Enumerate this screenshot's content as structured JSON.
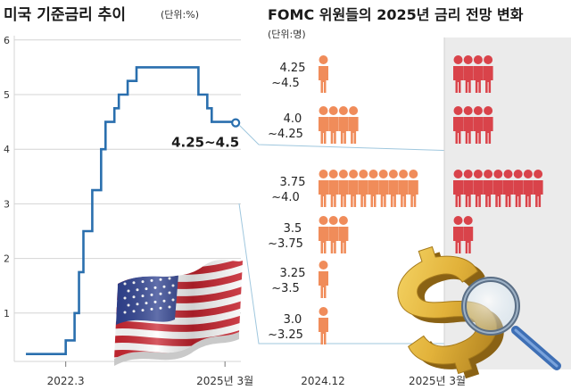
{
  "chart_data": [
    {
      "type": "line",
      "title": "미국 기준금리 추이",
      "unit": "(단위:%)",
      "x_tick_labels": [
        "2022.3",
        "2025년 3월"
      ],
      "y_tick_labels": [
        "1",
        "2",
        "3",
        "4",
        "5",
        "6"
      ],
      "ylim": [
        0,
        6
      ],
      "grid": true,
      "annotation": "4.25~4.5",
      "series": [
        {
          "x": [
            "2021.06",
            "2022.02",
            "2022.03",
            "2022.05",
            "2022.06",
            "2022.07",
            "2022.09",
            "2022.11",
            "2022.12",
            "2023.02",
            "2023.03",
            "2023.05",
            "2023.07",
            "2024.09",
            "2024.11",
            "2024.12",
            "2025.03"
          ],
          "values": [
            0.25,
            0.25,
            0.5,
            1.0,
            1.75,
            2.5,
            3.25,
            4.0,
            4.5,
            4.75,
            5.0,
            5.25,
            5.5,
            5.0,
            4.75,
            4.5,
            4.5
          ]
        }
      ]
    },
    {
      "type": "table",
      "title": "FOMC 위원들의 2025년 금리 전망 변화",
      "unit": "(단위:명)",
      "columns": [
        "2024.12",
        "2025년 3월"
      ],
      "rows": [
        {
          "label": "4.25\n~4.5",
          "line1": "4.25",
          "line2": "~4.5",
          "values": [
            1,
            4
          ]
        },
        {
          "label": "4.0\n~4.25",
          "line1": "4.0",
          "line2": "~4.25",
          "values": [
            4,
            4
          ]
        },
        {
          "label": "3.75\n~4.0",
          "line1": "3.75",
          "line2": "~4.0",
          "values": [
            10,
            9
          ]
        },
        {
          "label": "3.5\n~3.75",
          "line1": "3.5",
          "line2": "~3.75",
          "values": [
            3,
            2
          ]
        },
        {
          "label": "3.25\n~3.5",
          "line1": "3.25",
          "line2": "~3.5",
          "values": [
            1,
            0
          ]
        },
        {
          "label": "3.0\n~3.25",
          "line1": "3.0",
          "line2": "~3.25",
          "values": [
            1,
            0
          ]
        }
      ]
    }
  ],
  "colors": {
    "line": "#2a6fae",
    "grid": "#d4d4d4",
    "person_2024": "#f08c5a",
    "person_2025": "#d9434a",
    "shade_2025": "#ebebeb",
    "guide": "#9fc7de"
  },
  "icons": [
    "us-flag-icon",
    "dollar-magnifier-icon"
  ]
}
